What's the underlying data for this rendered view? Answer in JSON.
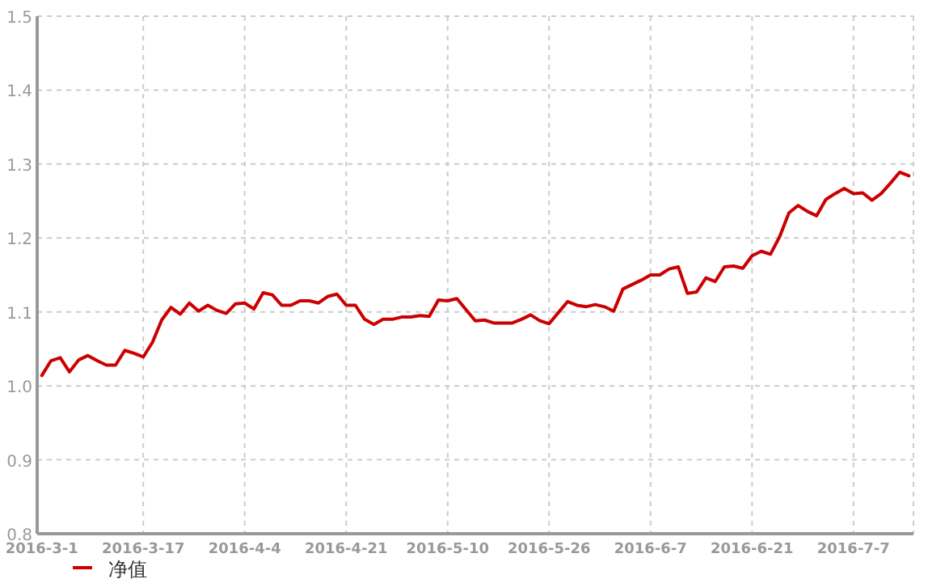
{
  "chart_data": {
    "type": "line",
    "categories": [
      "2016-3-1",
      null,
      null,
      null,
      null,
      null,
      null,
      null,
      null,
      null,
      null,
      "2016-3-17",
      null,
      null,
      null,
      null,
      null,
      null,
      null,
      null,
      null,
      null,
      "2016-4-4",
      null,
      null,
      null,
      null,
      null,
      null,
      null,
      null,
      null,
      null,
      "2016-4-21",
      null,
      null,
      null,
      null,
      null,
      null,
      null,
      null,
      null,
      null,
      "2016-5-10",
      null,
      null,
      null,
      null,
      null,
      null,
      null,
      null,
      null,
      null,
      "2016-5-26",
      null,
      null,
      null,
      null,
      null,
      null,
      null,
      null,
      null,
      null,
      "2016-6-7",
      null,
      null,
      null,
      null,
      null,
      null,
      null,
      null,
      null,
      null,
      "2016-6-21",
      null,
      null,
      null,
      null,
      null,
      null,
      null,
      null,
      null,
      null,
      "2016-7-7",
      null,
      null,
      null,
      null,
      null,
      null
    ],
    "series": [
      {
        "name": "净值",
        "color": "#cc0000",
        "values": [
          1.014,
          1.034,
          1.038,
          1.019,
          1.035,
          1.041,
          1.034,
          1.028,
          1.028,
          1.048,
          1.044,
          1.039,
          1.059,
          1.089,
          1.106,
          1.097,
          1.112,
          1.101,
          1.109,
          1.102,
          1.098,
          1.111,
          1.112,
          1.104,
          1.126,
          1.123,
          1.109,
          1.109,
          1.115,
          1.115,
          1.112,
          1.121,
          1.124,
          1.109,
          1.109,
          1.09,
          1.083,
          1.09,
          1.09,
          1.093,
          1.093,
          1.095,
          1.094,
          1.116,
          1.115,
          1.118,
          1.103,
          1.088,
          1.089,
          1.085,
          1.085,
          1.085,
          1.09,
          1.096,
          1.088,
          1.084,
          1.099,
          1.114,
          1.109,
          1.107,
          1.11,
          1.107,
          1.101,
          1.131,
          1.137,
          1.143,
          1.15,
          1.15,
          1.158,
          1.161,
          1.125,
          1.127,
          1.146,
          1.141,
          1.161,
          1.162,
          1.159,
          1.176,
          1.182,
          1.178,
          1.202,
          1.234,
          1.244,
          1.236,
          1.23,
          1.252,
          1.26,
          1.267,
          1.26,
          1.261,
          1.251,
          1.26,
          1.274,
          1.289,
          1.284
        ]
      }
    ],
    "ylim": [
      0.8,
      1.5
    ],
    "yticks": [
      {
        "value": 0.8,
        "label": "0.8"
      },
      {
        "value": 0.9,
        "label": "0.9"
      },
      {
        "value": 1.0,
        "label": "1.0"
      },
      {
        "value": 1.1,
        "label": "1.1"
      },
      {
        "value": 1.2,
        "label": "1.2"
      },
      {
        "value": 1.3,
        "label": "1.3"
      },
      {
        "value": 1.4,
        "label": "1.4"
      },
      {
        "value": 1.5,
        "label": "1.5"
      }
    ],
    "grid": true,
    "legend": "bottom left",
    "marker": "none",
    "line_style": "solid"
  }
}
